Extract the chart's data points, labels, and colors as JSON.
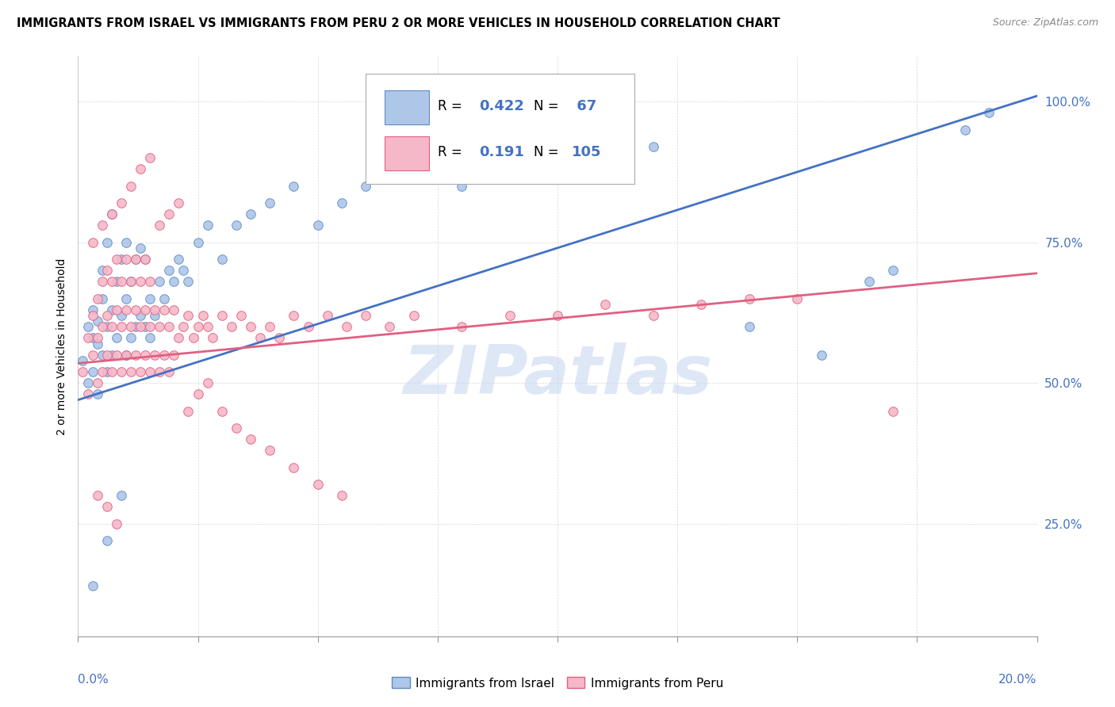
{
  "title": "IMMIGRANTS FROM ISRAEL VS IMMIGRANTS FROM PERU 2 OR MORE VEHICLES IN HOUSEHOLD CORRELATION CHART",
  "source": "Source: ZipAtlas.com",
  "ylabel": "2 or more Vehicles in Household",
  "color_israel": "#aec6e8",
  "color_israel_edge": "#5b8ec4",
  "color_peru": "#f5b8c8",
  "color_peru_edge": "#e06080",
  "color_israel_line": "#4472c4",
  "color_peru_line": "#e06080",
  "color_blue_text": "#4472c4",
  "watermark_color": "#c8d8f0",
  "xlim": [
    0.0,
    0.2
  ],
  "ylim": [
    0.05,
    1.08
  ],
  "israel_line_x": [
    0.0,
    0.2
  ],
  "israel_line_y": [
    0.47,
    1.01
  ],
  "peru_line_x": [
    0.0,
    0.2
  ],
  "peru_line_y": [
    0.535,
    0.695
  ],
  "israel_x": [
    0.001,
    0.002,
    0.002,
    0.003,
    0.003,
    0.003,
    0.004,
    0.004,
    0.004,
    0.005,
    0.005,
    0.005,
    0.006,
    0.006,
    0.006,
    0.007,
    0.007,
    0.007,
    0.008,
    0.008,
    0.009,
    0.009,
    0.01,
    0.01,
    0.01,
    0.011,
    0.011,
    0.012,
    0.012,
    0.013,
    0.013,
    0.014,
    0.014,
    0.015,
    0.015,
    0.016,
    0.017,
    0.018,
    0.019,
    0.02,
    0.021,
    0.022,
    0.023,
    0.025,
    0.027,
    0.03,
    0.033,
    0.036,
    0.04,
    0.045,
    0.05,
    0.055,
    0.06,
    0.07,
    0.08,
    0.09,
    0.1,
    0.12,
    0.14,
    0.155,
    0.165,
    0.17,
    0.185,
    0.19,
    0.003,
    0.006,
    0.009
  ],
  "israel_y": [
    0.54,
    0.6,
    0.5,
    0.58,
    0.63,
    0.52,
    0.57,
    0.61,
    0.48,
    0.55,
    0.65,
    0.7,
    0.52,
    0.6,
    0.75,
    0.55,
    0.63,
    0.8,
    0.58,
    0.68,
    0.62,
    0.72,
    0.55,
    0.65,
    0.75,
    0.58,
    0.68,
    0.6,
    0.72,
    0.62,
    0.74,
    0.6,
    0.72,
    0.58,
    0.65,
    0.62,
    0.68,
    0.65,
    0.7,
    0.68,
    0.72,
    0.7,
    0.68,
    0.75,
    0.78,
    0.72,
    0.78,
    0.8,
    0.82,
    0.85,
    0.78,
    0.82,
    0.85,
    0.88,
    0.85,
    0.88,
    0.9,
    0.92,
    0.6,
    0.55,
    0.68,
    0.7,
    0.95,
    0.98,
    0.14,
    0.22,
    0.3
  ],
  "peru_x": [
    0.001,
    0.002,
    0.002,
    0.003,
    0.003,
    0.004,
    0.004,
    0.004,
    0.005,
    0.005,
    0.005,
    0.006,
    0.006,
    0.006,
    0.007,
    0.007,
    0.007,
    0.008,
    0.008,
    0.008,
    0.009,
    0.009,
    0.009,
    0.01,
    0.01,
    0.01,
    0.011,
    0.011,
    0.011,
    0.012,
    0.012,
    0.012,
    0.013,
    0.013,
    0.013,
    0.014,
    0.014,
    0.014,
    0.015,
    0.015,
    0.015,
    0.016,
    0.016,
    0.017,
    0.017,
    0.018,
    0.018,
    0.019,
    0.019,
    0.02,
    0.02,
    0.021,
    0.022,
    0.023,
    0.024,
    0.025,
    0.026,
    0.027,
    0.028,
    0.03,
    0.032,
    0.034,
    0.036,
    0.038,
    0.04,
    0.042,
    0.045,
    0.048,
    0.052,
    0.056,
    0.06,
    0.065,
    0.07,
    0.08,
    0.09,
    0.1,
    0.11,
    0.12,
    0.13,
    0.14,
    0.003,
    0.005,
    0.007,
    0.009,
    0.011,
    0.013,
    0.015,
    0.017,
    0.019,
    0.021,
    0.023,
    0.025,
    0.027,
    0.03,
    0.033,
    0.036,
    0.04,
    0.045,
    0.05,
    0.055,
    0.004,
    0.006,
    0.008,
    0.15,
    0.17
  ],
  "peru_y": [
    0.52,
    0.58,
    0.48,
    0.55,
    0.62,
    0.5,
    0.58,
    0.65,
    0.52,
    0.6,
    0.68,
    0.55,
    0.62,
    0.7,
    0.52,
    0.6,
    0.68,
    0.55,
    0.63,
    0.72,
    0.52,
    0.6,
    0.68,
    0.55,
    0.63,
    0.72,
    0.52,
    0.6,
    0.68,
    0.55,
    0.63,
    0.72,
    0.52,
    0.6,
    0.68,
    0.55,
    0.63,
    0.72,
    0.52,
    0.6,
    0.68,
    0.55,
    0.63,
    0.52,
    0.6,
    0.55,
    0.63,
    0.52,
    0.6,
    0.55,
    0.63,
    0.58,
    0.6,
    0.62,
    0.58,
    0.6,
    0.62,
    0.6,
    0.58,
    0.62,
    0.6,
    0.62,
    0.6,
    0.58,
    0.6,
    0.58,
    0.62,
    0.6,
    0.62,
    0.6,
    0.62,
    0.6,
    0.62,
    0.6,
    0.62,
    0.62,
    0.64,
    0.62,
    0.64,
    0.65,
    0.75,
    0.78,
    0.8,
    0.82,
    0.85,
    0.88,
    0.9,
    0.78,
    0.8,
    0.82,
    0.45,
    0.48,
    0.5,
    0.45,
    0.42,
    0.4,
    0.38,
    0.35,
    0.32,
    0.3,
    0.3,
    0.28,
    0.25,
    0.65,
    0.45
  ]
}
